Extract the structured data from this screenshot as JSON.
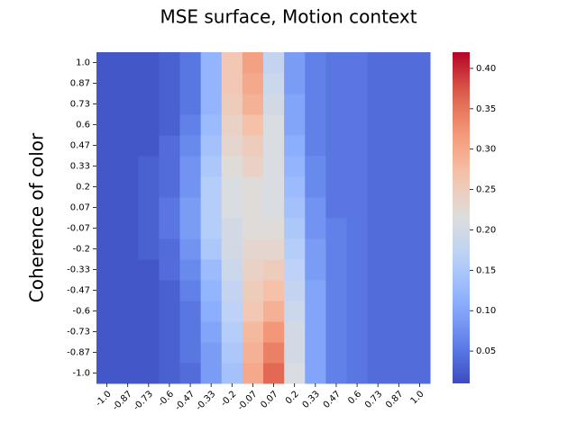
{
  "chart_data": {
    "type": "heatmap",
    "title": "MSE surface, Motion context",
    "y_label": "Coherence of color",
    "xticks": [
      {
        "value": -1,
        "label": "-1.0"
      },
      -0.87,
      -0.73,
      -0.6,
      -0.47,
      -0.33,
      -0.2,
      -0.07,
      0.07,
      0.2,
      0.33,
      0.47,
      0.6,
      0.73,
      0.87,
      {
        "value": 1,
        "label": "1.0"
      }
    ],
    "yticks": [
      {
        "value": -1,
        "label": "-1.0"
      },
      -0.87,
      -0.73,
      -0.6,
      -0.47,
      -0.33,
      -0.2,
      -0.07,
      0.07,
      0.2,
      0.33,
      0.47,
      0.6,
      0.73,
      0.87,
      {
        "value": 1,
        "label": "1.0"
      }
    ],
    "values": [
      [
        0.02,
        0.02,
        0.02,
        0.03,
        0.04,
        0.09,
        0.14,
        0.3,
        0.36,
        0.21,
        0.1,
        0.06,
        0.05,
        0.04,
        0.04,
        0.04
      ],
      [
        0.02,
        0.02,
        0.02,
        0.03,
        0.05,
        0.09,
        0.15,
        0.29,
        0.34,
        0.2,
        0.1,
        0.06,
        0.05,
        0.04,
        0.04,
        0.04
      ],
      [
        0.02,
        0.02,
        0.02,
        0.03,
        0.05,
        0.1,
        0.16,
        0.28,
        0.32,
        0.2,
        0.1,
        0.06,
        0.05,
        0.04,
        0.04,
        0.04
      ],
      [
        0.02,
        0.02,
        0.02,
        0.03,
        0.05,
        0.11,
        0.17,
        0.26,
        0.29,
        0.19,
        0.1,
        0.06,
        0.05,
        0.04,
        0.04,
        0.04
      ],
      [
        0.02,
        0.02,
        0.02,
        0.03,
        0.06,
        0.12,
        0.18,
        0.25,
        0.27,
        0.18,
        0.1,
        0.06,
        0.05,
        0.04,
        0.04,
        0.04
      ],
      [
        0.02,
        0.02,
        0.02,
        0.04,
        0.07,
        0.13,
        0.19,
        0.24,
        0.25,
        0.17,
        0.09,
        0.06,
        0.05,
        0.04,
        0.04,
        0.04
      ],
      [
        0.02,
        0.02,
        0.03,
        0.04,
        0.08,
        0.15,
        0.2,
        0.23,
        0.23,
        0.16,
        0.09,
        0.06,
        0.05,
        0.04,
        0.04,
        0.04
      ],
      [
        0.02,
        0.02,
        0.03,
        0.05,
        0.09,
        0.16,
        0.2,
        0.22,
        0.22,
        0.15,
        0.08,
        0.06,
        0.05,
        0.04,
        0.04,
        0.04
      ],
      [
        0.02,
        0.02,
        0.03,
        0.05,
        0.09,
        0.16,
        0.21,
        0.22,
        0.21,
        0.14,
        0.08,
        0.05,
        0.05,
        0.04,
        0.04,
        0.04
      ],
      [
        0.02,
        0.02,
        0.03,
        0.04,
        0.08,
        0.16,
        0.21,
        0.22,
        0.21,
        0.13,
        0.07,
        0.05,
        0.05,
        0.04,
        0.04,
        0.04
      ],
      [
        0.02,
        0.02,
        0.03,
        0.04,
        0.08,
        0.15,
        0.22,
        0.24,
        0.21,
        0.12,
        0.07,
        0.05,
        0.05,
        0.04,
        0.04,
        0.04
      ],
      [
        0.02,
        0.02,
        0.02,
        0.04,
        0.07,
        0.14,
        0.23,
        0.25,
        0.21,
        0.11,
        0.06,
        0.05,
        0.05,
        0.04,
        0.04,
        0.04
      ],
      [
        0.02,
        0.02,
        0.02,
        0.03,
        0.06,
        0.13,
        0.24,
        0.27,
        0.21,
        0.1,
        0.06,
        0.05,
        0.05,
        0.04,
        0.04,
        0.04
      ],
      [
        0.02,
        0.02,
        0.02,
        0.03,
        0.05,
        0.12,
        0.25,
        0.29,
        0.2,
        0.1,
        0.06,
        0.05,
        0.05,
        0.04,
        0.04,
        0.04
      ],
      [
        0.02,
        0.02,
        0.02,
        0.03,
        0.05,
        0.12,
        0.26,
        0.3,
        0.19,
        0.09,
        0.06,
        0.05,
        0.05,
        0.04,
        0.04,
        0.04
      ],
      [
        0.02,
        0.02,
        0.02,
        0.03,
        0.05,
        0.12,
        0.26,
        0.31,
        0.18,
        0.09,
        0.06,
        0.05,
        0.05,
        0.04,
        0.04,
        0.04
      ]
    ],
    "colormap": "coolwarm",
    "clim": [
      0.01,
      0.42
    ],
    "cbar_ticks": [
      0.05,
      0.1,
      0.15,
      0.2,
      0.25,
      0.3,
      0.35,
      0.4
    ]
  }
}
